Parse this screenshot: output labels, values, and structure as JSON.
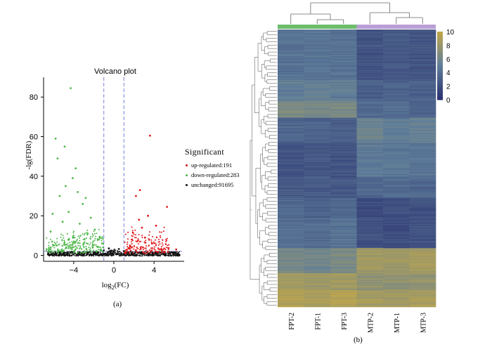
{
  "panels": {
    "a_label": "(a)",
    "b_label": "(b)"
  },
  "chart_data": [
    {
      "type": "scatter",
      "title": "Volcano plot",
      "xlabel_main": "log",
      "xlabel_sub": "2",
      "xlabel_tail": "(FC)",
      "ylabel": "-lg(FDR)",
      "xlim": [
        -7,
        7
      ],
      "ylim": [
        -3,
        90
      ],
      "xticks": [
        -4,
        0,
        4
      ],
      "yticks": [
        0,
        20,
        40,
        60,
        80
      ],
      "fc_threshold": 1,
      "fdr_threshold": 2,
      "legend": {
        "title": "Significant",
        "entries": [
          {
            "label": "up-regulated:191",
            "color": "#e0191b"
          },
          {
            "label": "down-regulated:283",
            "color": "#4db84a"
          },
          {
            "label": "unchanged:91695",
            "color": "#111111"
          }
        ]
      },
      "series": [
        {
          "name": "up-regulated",
          "color": "#e0191b",
          "points": [
            [
              3.6,
              60.5
            ],
            [
              5.3,
              24.5
            ],
            [
              3.4,
              20
            ],
            [
              2.6,
              33
            ],
            [
              2.2,
              30
            ],
            [
              4.2,
              15
            ],
            [
              2.8,
              14
            ],
            [
              1.9,
              11.5
            ],
            [
              3.1,
              9
            ],
            [
              2.4,
              7.5
            ],
            [
              1.6,
              5
            ],
            [
              2.9,
              4
            ],
            [
              4.6,
              3
            ],
            [
              6.2,
              3
            ],
            [
              1.5,
              3.5
            ],
            [
              2.2,
              2.6
            ],
            [
              3.8,
              6
            ],
            [
              2.5,
              18
            ],
            [
              1.8,
              8
            ]
          ]
        },
        {
          "name": "down-regulated",
          "color": "#4db84a",
          "points": [
            [
              -4.3,
              84.5
            ],
            [
              -5.8,
              59
            ],
            [
              -4.9,
              55
            ],
            [
              -5.6,
              49
            ],
            [
              -3.8,
              44
            ],
            [
              -4.1,
              39
            ],
            [
              -4.8,
              35
            ],
            [
              -3.6,
              32
            ],
            [
              -5.4,
              30
            ],
            [
              -2.8,
              29
            ],
            [
              -6.1,
              21
            ],
            [
              -3.1,
              26
            ],
            [
              -4.5,
              22
            ],
            [
              -2.3,
              19
            ],
            [
              -5.1,
              17
            ],
            [
              -3.4,
              16
            ],
            [
              -1.9,
              13
            ],
            [
              -2.6,
              11
            ],
            [
              -6.3,
              12
            ],
            [
              -4.0,
              9
            ],
            [
              -1.5,
              8
            ],
            [
              -3.0,
              6
            ],
            [
              -2.1,
              4
            ],
            [
              -5.7,
              5
            ],
            [
              -1.3,
              3
            ]
          ]
        },
        {
          "name": "unchanged",
          "color": "#111111",
          "points": [
            [
              -6.5,
              0.3
            ],
            [
              -5.8,
              1.2
            ],
            [
              -5.0,
              0.5
            ],
            [
              -4.2,
              1.8
            ],
            [
              -3.4,
              0.4
            ],
            [
              -2.6,
              1.5
            ],
            [
              -1.8,
              0.8
            ],
            [
              -1.0,
              2.5
            ],
            [
              -0.5,
              3.5
            ],
            [
              0,
              1.5
            ],
            [
              0.5,
              3.2
            ],
            [
              1.0,
              2.2
            ],
            [
              1.8,
              0.7
            ],
            [
              2.6,
              1.3
            ],
            [
              3.4,
              0.4
            ],
            [
              4.2,
              1.1
            ],
            [
              5.0,
              0.6
            ],
            [
              5.8,
              1.5
            ],
            [
              6.5,
              0.2
            ],
            [
              -0.2,
              0.5
            ],
            [
              0.3,
              0.8
            ]
          ]
        }
      ]
    },
    {
      "type": "heatmap",
      "columns": [
        "FPT-2",
        "FPT-1",
        "FPT-3",
        "MTP-2",
        "MTP-1",
        "MTP-3"
      ],
      "groups": [
        {
          "name": "FPT",
          "color": "#6ebd6c"
        },
        {
          "name": "MTP",
          "color": "#b99fd6"
        }
      ],
      "colorbar": {
        "min": 0,
        "max": 10,
        "ticks": [
          "10",
          "8",
          "6",
          "4",
          "2",
          "0"
        ],
        "low_color": "#2b3270",
        "mid_color": "#5f7e9a",
        "high_color": "#bfa64a"
      },
      "row_blocks": [
        {
          "rows": 60,
          "values": [
            4.2,
            4.4,
            4.1,
            2.2,
            2.6,
            2.3
          ]
        },
        {
          "rows": 25,
          "values": [
            5.0,
            5.2,
            4.9,
            3.0,
            3.2,
            3.1
          ]
        },
        {
          "rows": 20,
          "values": [
            6.5,
            6.1,
            6.3,
            3.6,
            3.8,
            3.5
          ]
        },
        {
          "rows": 30,
          "values": [
            3.4,
            3.2,
            2.9,
            5.6,
            5.1,
            5.4
          ]
        },
        {
          "rows": 40,
          "values": [
            2.2,
            2.4,
            2.1,
            4.8,
            4.6,
            4.5
          ]
        },
        {
          "rows": 25,
          "values": [
            2.5,
            2.6,
            2.4,
            3.6,
            3.8,
            3.5
          ]
        },
        {
          "rows": 25,
          "values": [
            3.6,
            3.3,
            3.5,
            1.8,
            2.0,
            1.9
          ]
        },
        {
          "rows": 35,
          "values": [
            4.0,
            3.8,
            4.2,
            2.0,
            1.7,
            2.1
          ]
        },
        {
          "rows": 30,
          "values": [
            6.1,
            6.0,
            6.3,
            8.5,
            8.2,
            8.6
          ]
        },
        {
          "rows": 20,
          "values": [
            8.6,
            8.3,
            8.4,
            7.5,
            7.3,
            7.7
          ]
        },
        {
          "rows": 20,
          "values": [
            9.3,
            9.0,
            9.4,
            8.6,
            8.4,
            8.8
          ]
        }
      ]
    }
  ]
}
